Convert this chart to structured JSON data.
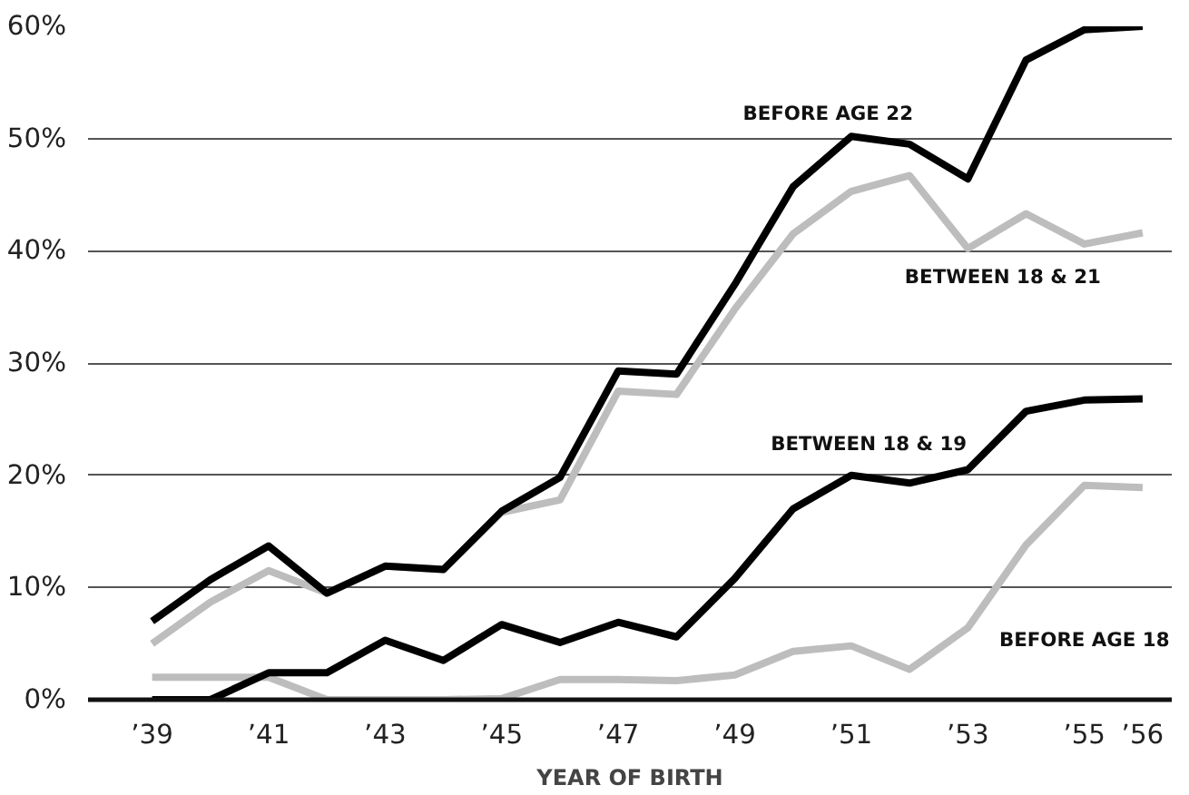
{
  "chart_data": {
    "type": "line",
    "xlabel": "YEAR OF BIRTH",
    "x": [
      1939,
      1940,
      1941,
      1942,
      1943,
      1944,
      1945,
      1946,
      1947,
      1948,
      1949,
      1950,
      1951,
      1952,
      1953,
      1954,
      1955,
      1956
    ],
    "xlim": [
      1937.9,
      1956.5
    ],
    "ylim": [
      0,
      60
    ],
    "xticks": [
      {
        "value": 1939,
        "label": "’39"
      },
      {
        "value": 1941,
        "label": "’41"
      },
      {
        "value": 1943,
        "label": "’43"
      },
      {
        "value": 1945,
        "label": "’45"
      },
      {
        "value": 1947,
        "label": "’47"
      },
      {
        "value": 1949,
        "label": "’49"
      },
      {
        "value": 1951,
        "label": "’51"
      },
      {
        "value": 1953,
        "label": "’53"
      },
      {
        "value": 1955,
        "label": "’55"
      },
      {
        "value": 1956,
        "label": "’56"
      }
    ],
    "yticks": [
      {
        "value": 0,
        "label": "0%"
      },
      {
        "value": 10,
        "label": "10%"
      },
      {
        "value": 20,
        "label": "20%"
      },
      {
        "value": 30,
        "label": "30%"
      },
      {
        "value": 40,
        "label": "40%"
      },
      {
        "value": 50,
        "label": "50%"
      },
      {
        "value": 60,
        "label": "60%"
      }
    ],
    "grid": "y",
    "legend": false,
    "marker": "none",
    "line_style": "solid",
    "series": [
      {
        "name": "BETWEEN 18 & 21",
        "color": "#bdbdbd",
        "values": [
          5,
          8.7,
          11.5,
          9.5,
          11.9,
          11.6,
          16.7,
          17.8,
          27.5,
          27.2,
          34.8,
          41.5,
          45.3,
          46.7,
          40.2,
          43.3,
          40.6,
          41.6
        ]
      },
      {
        "name": "BEFORE AGE 18",
        "color": "#bdbdbd",
        "values": [
          2,
          2,
          2,
          0,
          0,
          0,
          0.1,
          1.8,
          1.8,
          1.7,
          2.2,
          4.3,
          4.8,
          2.7,
          6.4,
          13.8,
          19.1,
          18.9
        ]
      },
      {
        "name": "BEFORE AGE 22",
        "color": "#000000",
        "values": [
          7,
          10.7,
          13.7,
          9.5,
          11.9,
          11.6,
          16.8,
          19.8,
          29.3,
          29,
          37,
          45.7,
          50.2,
          49.5,
          46.4,
          57,
          59.7,
          60
        ]
      },
      {
        "name": "BETWEEN 18 & 19",
        "color": "#000000",
        "values": [
          0,
          0,
          2.4,
          2.4,
          5.3,
          3.5,
          6.7,
          5.1,
          6.9,
          5.6,
          10.8,
          17,
          20,
          19.3,
          20.5,
          25.7,
          26.7,
          26.8
        ]
      }
    ]
  }
}
